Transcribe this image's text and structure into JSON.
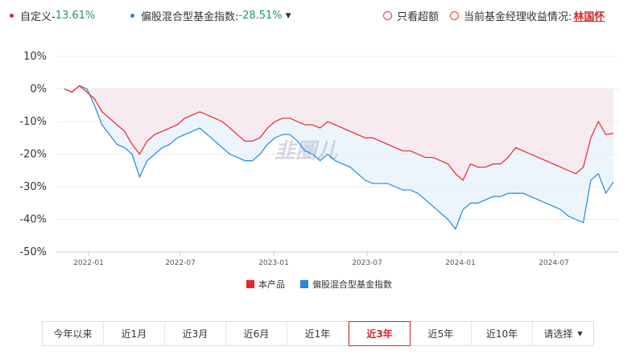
{
  "legend_top": {
    "product": {
      "label": "自定义-",
      "value": "13.61%",
      "color": "#e8262c"
    },
    "index": {
      "label": "偏股混合型基金指数: ",
      "value": "-28.51%",
      "color": "#2388e0"
    },
    "only_excess": "只看超额",
    "manager_label": "当前基金经理收益情况:",
    "manager_name": "林国怀"
  },
  "watermark": "韭圈儿",
  "tabs": [
    "今年以来",
    "近1月",
    "近3月",
    "近6月",
    "近1年",
    "近3年",
    "近5年",
    "近10年",
    "请选择"
  ],
  "active_tab": "近3年",
  "chart_data": {
    "type": "line",
    "x_tick_labels": [
      "2022-01",
      "2022-07",
      "2023-01",
      "2023-07",
      "2024-01",
      "2024-07"
    ],
    "y_tick_labels": [
      "10%",
      "0%",
      "-10%",
      "-20%",
      "-30%",
      "-40%",
      "-50%"
    ],
    "ylim": [
      -50,
      10
    ],
    "grid": true,
    "legend_position": "bottom",
    "series": [
      {
        "name": "本产品",
        "color": "#e8262c",
        "values": [
          0,
          -1,
          1,
          -1,
          -3,
          -7,
          -9,
          -11,
          -13,
          -17,
          -20,
          -16,
          -14,
          -13,
          -12,
          -11,
          -9,
          -8,
          -7,
          -8,
          -9,
          -10,
          -12,
          -14,
          -16,
          -16,
          -15,
          -12,
          -10,
          -9,
          -9,
          -10,
          -11,
          -11,
          -12,
          -10,
          -11,
          -12,
          -13,
          -14,
          -15,
          -15,
          -16,
          -17,
          -18,
          -19,
          -19,
          -20,
          -21,
          -21,
          -22,
          -23,
          -26,
          -28,
          -23,
          -24,
          -24,
          -23,
          -23,
          -21,
          -18,
          -19,
          -20,
          -21,
          -22,
          -23,
          -24,
          -25,
          -26,
          -24,
          -15,
          -10,
          -14,
          -13.61
        ]
      },
      {
        "name": "偏股混合型基金指数",
        "color": "#2388e0",
        "values": [
          0,
          -1,
          1,
          0,
          -5,
          -11,
          -14,
          -17,
          -18,
          -20,
          -27,
          -22,
          -20,
          -18,
          -17,
          -15,
          -14,
          -13,
          -12,
          -14,
          -16,
          -18,
          -20,
          -21,
          -22,
          -22,
          -20,
          -17,
          -15,
          -14,
          -14,
          -16,
          -19,
          -20,
          -22,
          -20,
          -22,
          -23,
          -24,
          -26,
          -28,
          -29,
          -29,
          -29,
          -30,
          -31,
          -31,
          -32,
          -34,
          -36,
          -38,
          -40,
          -43,
          -37,
          -35,
          -35,
          -34,
          -33,
          -33,
          -32,
          -32,
          -32,
          -33,
          -34,
          -35,
          -36,
          -37,
          -39,
          -40,
          -41,
          -28,
          -26,
          -32,
          -28.51
        ]
      }
    ]
  }
}
